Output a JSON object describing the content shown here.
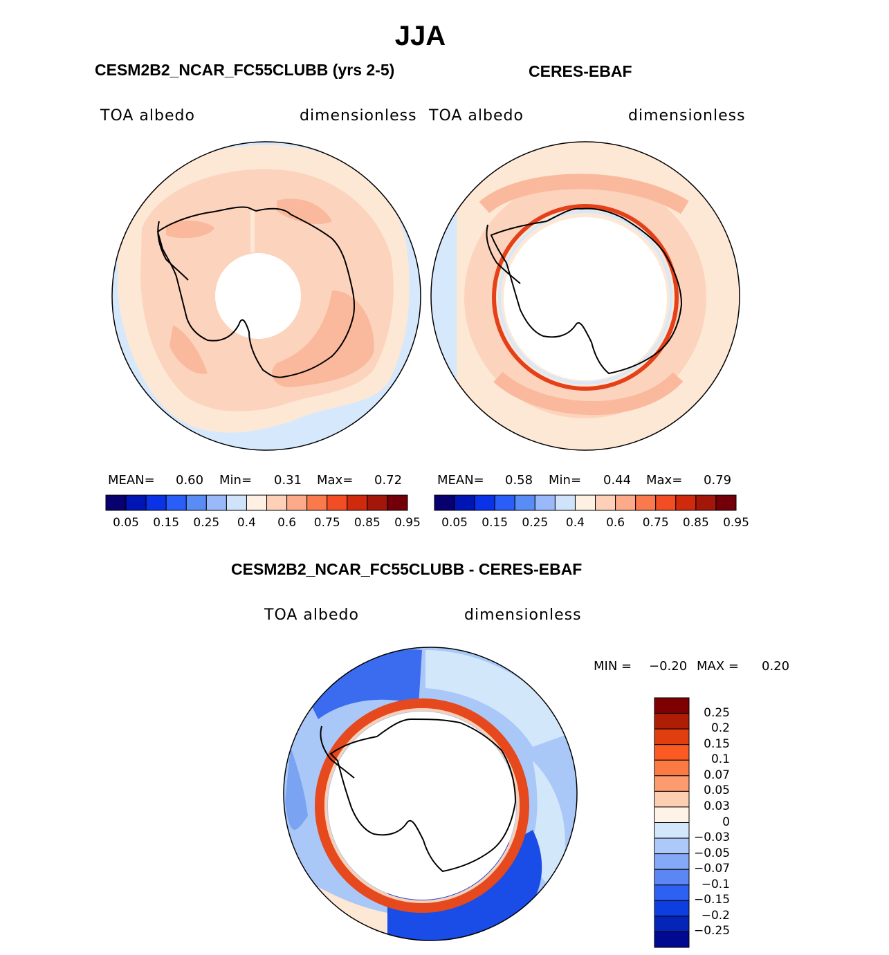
{
  "title": "JJA",
  "panels": [
    {
      "title": "CESM2B2_NCAR_FC55CLUBB (yrs 2-5)",
      "variable": "TOA albedo",
      "units": "dimensionless",
      "stats": {
        "mean_label": "MEAN=",
        "mean": "0.60",
        "min_label": "Min=",
        "min": "0.31",
        "max_label": "Max=",
        "max": "0.72"
      }
    },
    {
      "title": "CERES-EBAF",
      "variable": "TOA albedo",
      "units": "dimensionless",
      "stats": {
        "mean_label": "MEAN=",
        "mean": "0.58",
        "min_label": "Min=",
        "min": "0.44",
        "max_label": "Max=",
        "max": "0.79"
      }
    },
    {
      "title": "CESM2B2_NCAR_FC55CLUBB - CERES-EBAF",
      "variable": "TOA albedo",
      "units": "dimensionless",
      "stats": {
        "min_label": "MIN =",
        "min": "−0.20",
        "max_label": "MAX =",
        "max": "0.20"
      }
    }
  ],
  "colorbar_top": {
    "colors": [
      "#08006e",
      "#0016b4",
      "#0a32e6",
      "#2a5ef8",
      "#5a8cf5",
      "#9ab9fa",
      "#cfe3fb",
      "#fef0e2",
      "#fdd0b7",
      "#fcaa89",
      "#fa7a4e",
      "#f24d24",
      "#d02a0e",
      "#a3160a",
      "#730008"
    ],
    "labels": [
      "0.05",
      "0.15",
      "0.25",
      "0.4",
      "0.6",
      "0.75",
      "0.85",
      "0.95"
    ]
  },
  "colorbar_diff": {
    "colors": [
      "#7f0000",
      "#b01d05",
      "#e03e0e",
      "#fb5a23",
      "#fb7a44",
      "#fc9b6e",
      "#fdcfb2",
      "#fff2e6",
      "#d3e7fb",
      "#adc9f9",
      "#85a9f6",
      "#5c86f1",
      "#2c61f2",
      "#0d3fe0",
      "#0524b8",
      "#00098f"
    ],
    "labels": [
      "0.25",
      "0.2",
      "0.15",
      "0.1",
      "0.07",
      "0.05",
      "0.03",
      "0",
      "−0.03",
      "−0.05",
      "−0.07",
      "−0.1",
      "−0.15",
      "−0.2",
      "−0.25"
    ]
  },
  "map_colors": {
    "ocean_light": "#d6e8fb",
    "level_055": "#fde8d6",
    "level_060": "#fcd3bd",
    "level_065": "#fab99c",
    "level_070": "#f99572",
    "ring_red": "#e4411a",
    "diff_pos": "#e5491d",
    "diff_neg1": "#a9c8f7",
    "diff_neg2": "#7aa3f2",
    "diff_neg3": "#3b6cef",
    "diff_neg4": "#1a4ce8"
  }
}
